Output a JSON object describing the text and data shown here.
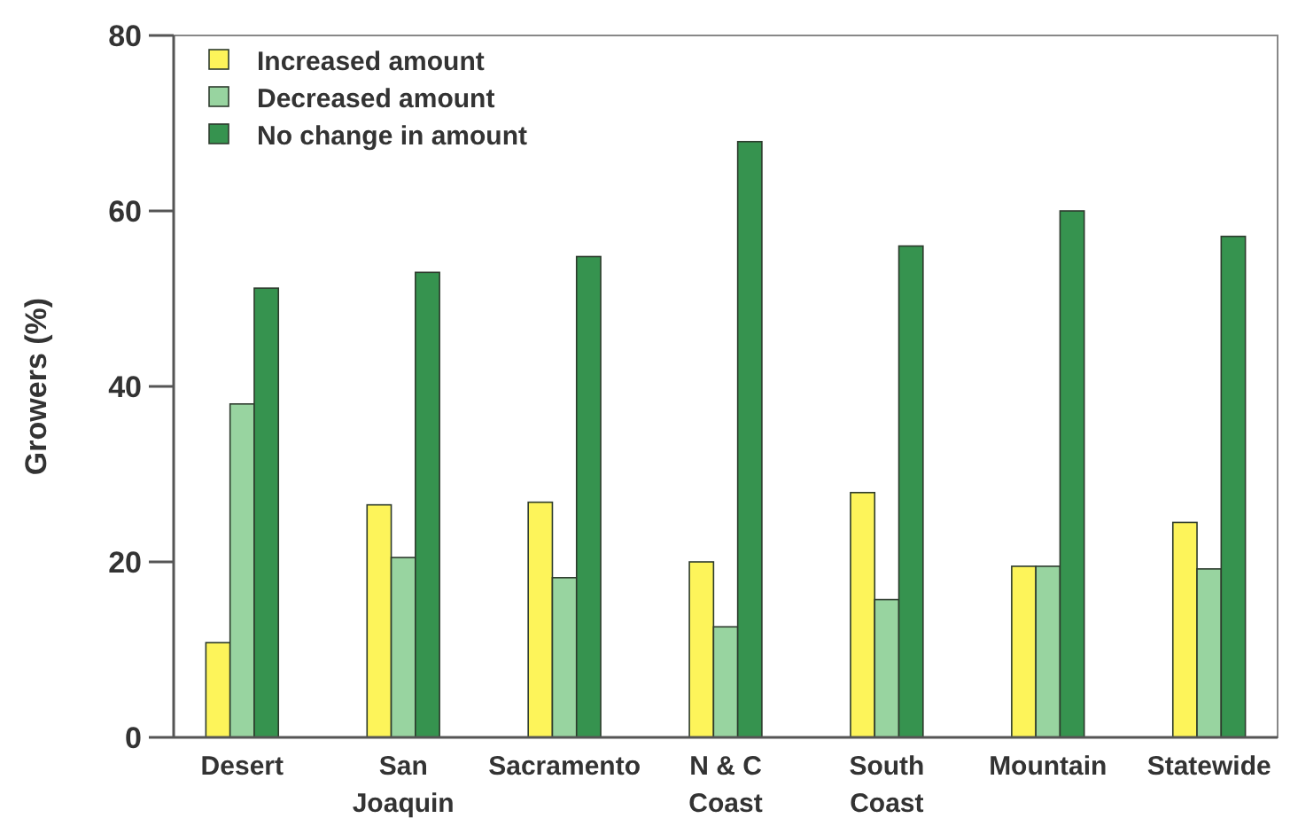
{
  "chart_data": {
    "type": "bar",
    "ylabel": "Growers (%)",
    "categories": [
      "Desert",
      "San\nJoaquin",
      "Sacramento",
      "N & C\nCoast",
      "South\nCoast",
      "Mountain",
      "Statewide"
    ],
    "series": [
      {
        "name": "Increased amount",
        "color": "#fdf45a",
        "values": [
          10.8,
          26.5,
          26.8,
          20.0,
          27.9,
          19.5,
          24.5
        ]
      },
      {
        "name": "Decreased amount",
        "color": "#98d4a0",
        "values": [
          38.0,
          20.5,
          18.2,
          12.6,
          15.7,
          19.5,
          19.2
        ]
      },
      {
        "name": "No change in amount",
        "color": "#36934f",
        "values": [
          51.2,
          53.0,
          54.8,
          67.9,
          56.0,
          60.0,
          57.1
        ]
      }
    ],
    "ylim": [
      0,
      80
    ],
    "yticks": [
      0,
      20,
      40,
      60,
      80
    ],
    "grid": false,
    "legend": "top left"
  }
}
